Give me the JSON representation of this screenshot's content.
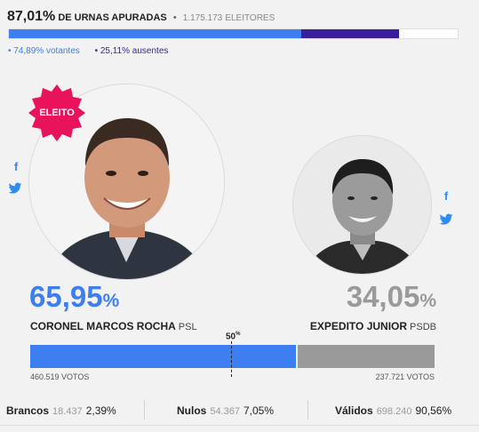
{
  "header": {
    "percent": "87,01%",
    "label": "DE URNAS APURADAS",
    "separator": "•",
    "voters_count": "1.175.173",
    "voters_label": "ELEITORES"
  },
  "turnout": {
    "votantes_text": "• 74,89% votantes",
    "ausentes_text": "• 25,11% ausentes",
    "votantes_fraction": 0.7489,
    "ausentes_fraction": 0.2511,
    "urnas_fraction": 0.8701,
    "votantes_color": "#3d7ff0",
    "ausentes_color": "#3b1f9a"
  },
  "winner_badge": {
    "label": "ELEITO",
    "color": "#e8135a"
  },
  "candidates": [
    {
      "percent": "65,95",
      "percent_sign": "%",
      "name": "CORONEL MARCOS ROCHA",
      "party": "PSL",
      "votes": "460.519 VOTOS",
      "vote_fraction": 0.6595,
      "color": "#3d7ff0",
      "social": {
        "facebook": "f",
        "twitter": "t"
      }
    },
    {
      "percent": "34,05",
      "percent_sign": "%",
      "name": "EXPEDITO JUNIOR",
      "party": "PSDB",
      "votes": "237.721 VOTOS",
      "vote_fraction": 0.3405,
      "color": "#9a9a9a",
      "social": {
        "facebook": "f",
        "twitter": "t"
      }
    }
  ],
  "midpoint": {
    "value": "50",
    "sign": "%"
  },
  "totals": {
    "brancos": {
      "label": "Brancos",
      "count": "18.437",
      "percent": "2,39%"
    },
    "nulos": {
      "label": "Nulos",
      "count": "54.367",
      "percent": "7,05%"
    },
    "validos": {
      "label": "Válidos",
      "count": "698.240",
      "percent": "90,56%"
    }
  }
}
